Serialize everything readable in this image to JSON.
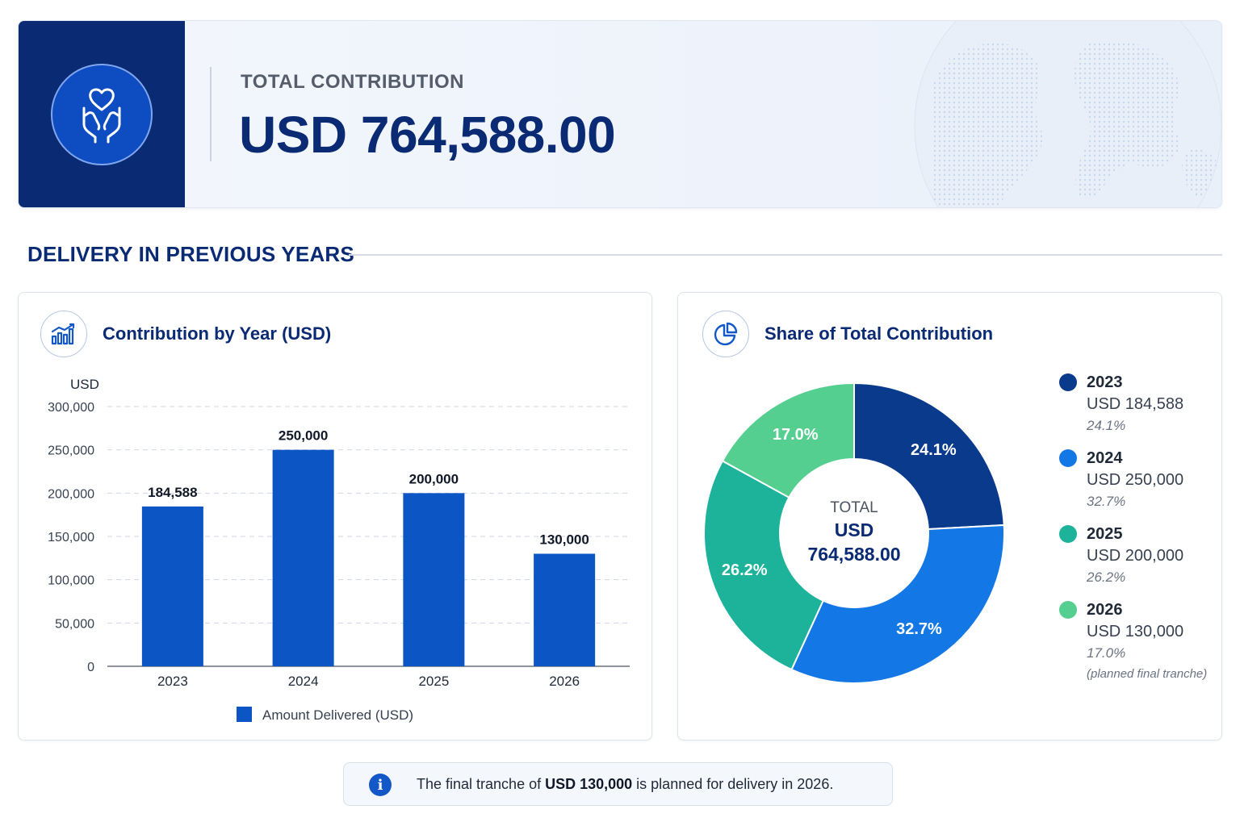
{
  "banner": {
    "label": "TOTAL CONTRIBUTION",
    "amount": "USD 764,588.00",
    "icon": "hands-heart-icon"
  },
  "section": {
    "title": "DELIVERY IN PREVIOUS YEARS"
  },
  "bar_card": {
    "title": "Contribution by Year (USD)",
    "icon": "bar-chart-icon"
  },
  "donut_card": {
    "title": "Share of Total Contribution",
    "icon": "pie-chart-icon",
    "center_line1": "TOTAL",
    "center_line2": "USD",
    "center_line3": "764,588.00",
    "legend": [
      {
        "year": "2023",
        "amount": "USD 184,588",
        "pct": "24.1%",
        "color": "#0a3a8c"
      },
      {
        "year": "2024",
        "amount": "USD 250,000",
        "pct": "32.7%",
        "color": "#1378e6"
      },
      {
        "year": "2025",
        "amount": "USD 200,000",
        "pct": "26.2%",
        "color": "#1db39a"
      },
      {
        "year": "2026",
        "amount": "USD 130,000",
        "pct": "17.0%",
        "color": "#55cf8f",
        "note": "(planned final tranche)"
      }
    ]
  },
  "info": {
    "text_before": "The final tranche of ",
    "text_bold": "USD 130,000",
    "text_after": " is planned for delivery in 2026."
  },
  "chart_data": [
    {
      "type": "bar",
      "title": "Contribution by Year (USD)",
      "ylabel": "USD",
      "xlabel": "",
      "categories": [
        "2023",
        "2024",
        "2025",
        "2026"
      ],
      "series": [
        {
          "name": "Amount Delivered (USD)",
          "values": [
            184588,
            250000,
            200000,
            130000
          ],
          "color": "#0b56c4"
        }
      ],
      "data_labels": [
        "184,588",
        "250,000",
        "200,000",
        "130,000"
      ],
      "ylim": [
        0,
        300000
      ],
      "yticks": [
        0,
        50000,
        100000,
        150000,
        200000,
        250000,
        300000
      ],
      "ytick_labels": [
        "0",
        "50,000",
        "100,000",
        "150,000",
        "200,000",
        "250,000",
        "300,000"
      ],
      "grid": true,
      "legend": "bottom"
    },
    {
      "type": "pie",
      "title": "Share of Total Contribution",
      "categories": [
        "2023",
        "2024",
        "2025",
        "2026"
      ],
      "values": [
        184588,
        250000,
        200000,
        130000
      ],
      "labels": [
        "24.1%",
        "32.7%",
        "26.2%",
        "17.0%"
      ],
      "colors": [
        "#0a3a8c",
        "#1378e6",
        "#1db39a",
        "#55cf8f"
      ],
      "donut": true,
      "legend": "right"
    }
  ]
}
